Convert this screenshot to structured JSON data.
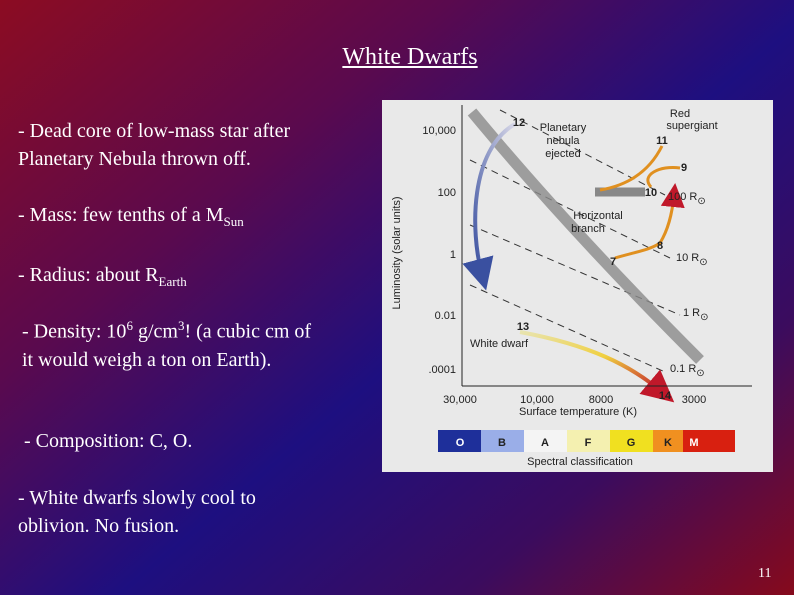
{
  "title": "White Dwarfs",
  "bullets": [
    {
      "text": "- Dead core of low-mass star after Planetary Nebula thrown off."
    },
    {
      "text": "- Mass: few tenths of a M",
      "subscript": "Sun"
    },
    {
      "text": "- Radius: about R",
      "subscript": "Earth"
    },
    {
      "text": "- Density: 10",
      "superscript": "6",
      "text_2": " g/cm",
      "superscript_2": "3",
      "text_3": "!  (a cubic cm of it would weigh a ton on Earth)."
    },
    {
      "text": "- Composition: C, O."
    },
    {
      "text": "- White dwarfs slowly cool to oblivion.  No fusion."
    }
  ],
  "figure": {
    "y_axis_label": "Luminosity (solar units)",
    "y_ticks": [
      "10,000",
      "100",
      "1",
      "0.01",
      ".0001"
    ],
    "x_axis_label": "Surface temperature (K)",
    "x_ticks": [
      "30,000",
      "10,000",
      "8000",
      "3000"
    ],
    "radius_lines": [
      {
        "label": "100 R",
        "subscript": "⊙"
      },
      {
        "label": "10 R",
        "subscript": "⊙"
      },
      {
        "label": "1 R",
        "subscript": "⊙"
      },
      {
        "label": "0.1 R",
        "subscript": "⊙"
      }
    ],
    "stages": [
      "12",
      "11",
      "9",
      "10",
      "8",
      "7",
      "13",
      "14"
    ],
    "annotations": [
      [
        "Red",
        "supergiant"
      ],
      [
        "Planetary",
        "nebula",
        "ejected"
      ],
      [
        "Horizontal",
        "branch"
      ],
      [
        "White dwarf"
      ]
    ],
    "spectral_classes": [
      "O",
      "B",
      "A",
      "F",
      "G",
      "K",
      "M"
    ],
    "spectral_label": "Spectral classification"
  },
  "page_number": "11"
}
